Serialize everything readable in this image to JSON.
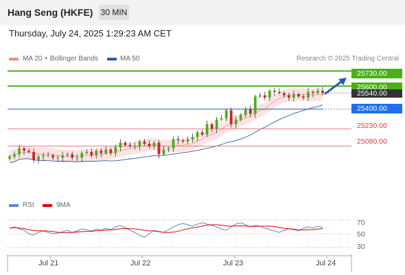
{
  "header": {
    "title": "Hang Seng (HKFE)",
    "interval": "30 MIN"
  },
  "datetime": "Thursday, July 24, 2025 1:29:23 AM CET",
  "legend": {
    "bollinger": {
      "label": "MA 20 + Bollinger Bands",
      "color": "#ef8a8a"
    },
    "ma50": {
      "label": "MA 50",
      "color": "#2e5aa8"
    },
    "copyright": "Research © 2025 Trading Central"
  },
  "rsi_legend": {
    "rsi": {
      "label": "RSI",
      "color": "#5b86d6"
    },
    "ma9": {
      "label": "9MA",
      "color": "#e00000"
    }
  },
  "colors": {
    "green_level": "#4caf1a",
    "blue_level": "#2a4fc4",
    "red_level": "#ef7a7a",
    "candle_up": "#4caf1a",
    "candle_down": "#c62828",
    "band_fill": "#fbe3e3",
    "price_tag_blue": "#1e6ff0",
    "price_tag_dark": "#333333",
    "arrow": "#2a5ab8"
  },
  "levels": [
    {
      "value": "25730.00",
      "type": "resistance",
      "color": "#4caf1a"
    },
    {
      "value": "25600.00",
      "type": "resistance",
      "color": "#4caf1a"
    },
    {
      "value": "25540.00",
      "type": "last",
      "color": "#333333"
    },
    {
      "value": "25400.00",
      "type": "pivot",
      "color": "#1e6ff0"
    },
    {
      "value": "25230.00",
      "type": "support",
      "color": "#e53935"
    },
    {
      "value": "25080.00",
      "type": "support",
      "color": "#e53935"
    }
  ],
  "rsi_ticks": [
    "70",
    "50",
    "30"
  ],
  "date_ticks": [
    "Jul 21",
    "Jul 22",
    "Jul 23",
    "Jul 24"
  ],
  "chart_data": {
    "type": "candlestick",
    "title": "Hang Seng (HKFE)",
    "interval": "30 MIN",
    "x_labels": [
      "Jul 21",
      "Jul 22",
      "Jul 23",
      "Jul 24"
    ],
    "ylim": [
      24690,
      25780
    ],
    "close": [
      24990,
      25010,
      25060,
      25040,
      25030,
      24960,
      24990,
      25000,
      25000,
      24980,
      24980,
      25000,
      25010,
      24980,
      24980,
      25020,
      25030,
      25000,
      25040,
      25020,
      25050,
      25020,
      25070,
      25110,
      25090,
      25080,
      25080,
      25120,
      25100,
      25080,
      25110,
      25010,
      25050,
      25060,
      25140,
      25130,
      25120,
      25140,
      25160,
      25200,
      25180,
      25270,
      25230,
      25310,
      25320,
      25390,
      25270,
      25310,
      25350,
      25400,
      25360,
      25510,
      25520,
      25500,
      25560,
      25550,
      25540,
      25520,
      25500,
      25530,
      25510,
      25500,
      25550,
      25540,
      25560,
      25540
    ],
    "rsi": [
      58,
      60,
      57,
      55,
      50,
      48,
      52,
      54,
      52,
      50,
      51,
      53,
      55,
      52,
      54,
      57,
      56,
      54,
      57,
      55,
      58,
      56,
      60,
      62,
      59,
      55,
      52,
      48,
      45,
      50,
      55,
      53,
      52,
      56,
      60,
      63,
      65,
      63,
      61,
      64,
      66,
      64,
      62,
      60,
      57,
      55,
      60,
      64,
      66,
      63,
      60,
      62,
      61,
      58,
      56,
      54,
      52,
      55,
      57,
      56,
      54,
      58,
      60,
      58,
      61,
      59
    ],
    "rsi_ylim": [
      20,
      80
    ],
    "rsi_levels": [
      70,
      50,
      30
    ],
    "series": [
      {
        "name": "MA 20 + Bollinger Bands",
        "type": "band"
      },
      {
        "name": "MA 50",
        "type": "line"
      },
      {
        "name": "RSI",
        "type": "line"
      },
      {
        "name": "9MA",
        "type": "line"
      }
    ],
    "levels": [
      25730,
      25600,
      25540,
      25400,
      25230,
      25080
    ],
    "grid": false,
    "legend_position": "top-left"
  }
}
